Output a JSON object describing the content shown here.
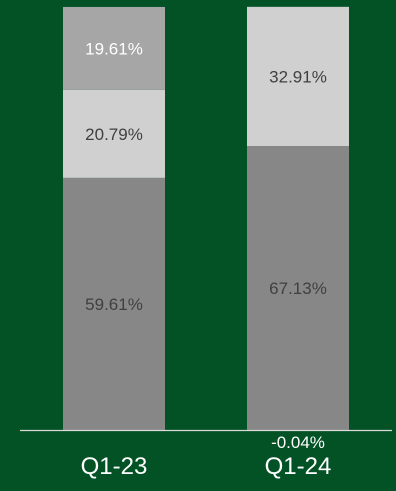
{
  "chart_data": {
    "type": "bar",
    "stacked": true,
    "categories": [
      "Q1-23",
      "Q1-24"
    ],
    "series": [
      {
        "values": [
          59.61,
          67.13
        ]
      },
      {
        "values": [
          20.79,
          32.91
        ]
      },
      {
        "values": [
          19.61,
          0
        ]
      },
      {
        "values": [
          0,
          -0.04
        ]
      }
    ],
    "labels": [
      [
        "59.61%",
        "20.79%",
        "19.61%",
        ""
      ],
      [
        "67.13%",
        "32.91%",
        "",
        "-0.04%"
      ]
    ],
    "ylim": [
      0,
      100
    ],
    "legend": "none",
    "grid": false,
    "colors": {
      "background": "#035226",
      "series": [
        "#878787",
        "#d0d0d0",
        "#a6a6a6",
        "#a6a6a6"
      ],
      "axis": "#d9d9d9",
      "label_dark": "#404040",
      "label_light": "#ffffff",
      "category_text": "#ffffff"
    }
  }
}
